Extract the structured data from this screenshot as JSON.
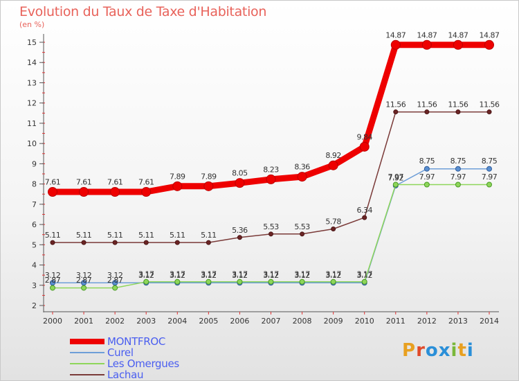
{
  "title": "Evolution du Taux de Taxe d'Habitation",
  "subtitle": "(en %)",
  "logo": "Proxiti",
  "chart_data": {
    "type": "line",
    "title": "Evolution du Taux de Taxe d'Habitation",
    "ylabel": "(en %)",
    "xlabel": "",
    "ylim": [
      2,
      15
    ],
    "yticks": [
      "2",
      "3",
      "4",
      "5",
      "6",
      "7",
      "8",
      "9",
      "10",
      "11",
      "12",
      "13",
      "14",
      "15"
    ],
    "x": [
      "2000",
      "2001",
      "2002",
      "2003",
      "2004",
      "2005",
      "2006",
      "2007",
      "2008",
      "2009",
      "2010",
      "2011",
      "2012",
      "2013",
      "2014"
    ],
    "grid": false,
    "legend": "bottom-left",
    "series": [
      {
        "name": "MONTFROC",
        "color": "#ee0000",
        "values": [
          7.61,
          7.61,
          7.61,
          7.61,
          7.89,
          7.89,
          8.05,
          8.23,
          8.36,
          8.92,
          9.84,
          14.87,
          14.87,
          14.87,
          14.87
        ],
        "labels": [
          "7.61",
          "7.61",
          "7.61",
          "7.61",
          "7.89",
          "7.89",
          "8.05",
          "8.23",
          "8.36",
          "8.92",
          "9.84",
          "14.87",
          "14.87",
          "14.87",
          "14.87"
        ]
      },
      {
        "name": "Curel",
        "color": "#6e9ed8",
        "values": [
          3.12,
          3.12,
          3.12,
          3.12,
          3.12,
          3.12,
          3.12,
          3.12,
          3.12,
          3.12,
          3.12,
          7.92,
          8.75,
          8.75,
          8.75
        ],
        "labels": [
          "3.12",
          "3.12",
          "3.12",
          "3.12",
          "3.12",
          "3.12",
          "3.12",
          "3.12",
          "3.12",
          "3.12",
          "3.12",
          "7.92",
          "8.75",
          "8.75",
          "8.75"
        ]
      },
      {
        "name": "Les Omergues",
        "color": "#8ed65a",
        "values": [
          2.87,
          2.87,
          2.87,
          3.17,
          3.17,
          3.17,
          3.17,
          3.17,
          3.17,
          3.17,
          3.17,
          7.97,
          7.97,
          7.97,
          7.97
        ],
        "labels": [
          "2.87",
          "2.87",
          "2.87",
          "3.17",
          "3.17",
          "3.17",
          "3.17",
          "3.17",
          "3.17",
          "3.17",
          "3.17",
          "7.97",
          "7.97",
          "7.97",
          "7.97"
        ]
      },
      {
        "name": "Lachau",
        "color": "#7a3a38",
        "values": [
          5.11,
          5.11,
          5.11,
          5.11,
          5.11,
          5.11,
          5.36,
          5.53,
          5.53,
          5.78,
          6.34,
          11.56,
          11.56,
          11.56,
          11.56
        ],
        "labels": [
          "5.11",
          "5.11",
          "5.11",
          "5.11",
          "5.11",
          "5.11",
          "5.36",
          "5.53",
          "5.53",
          "5.78",
          "6.34",
          "11.56",
          "11.56",
          "11.56",
          "11.56"
        ]
      }
    ]
  }
}
